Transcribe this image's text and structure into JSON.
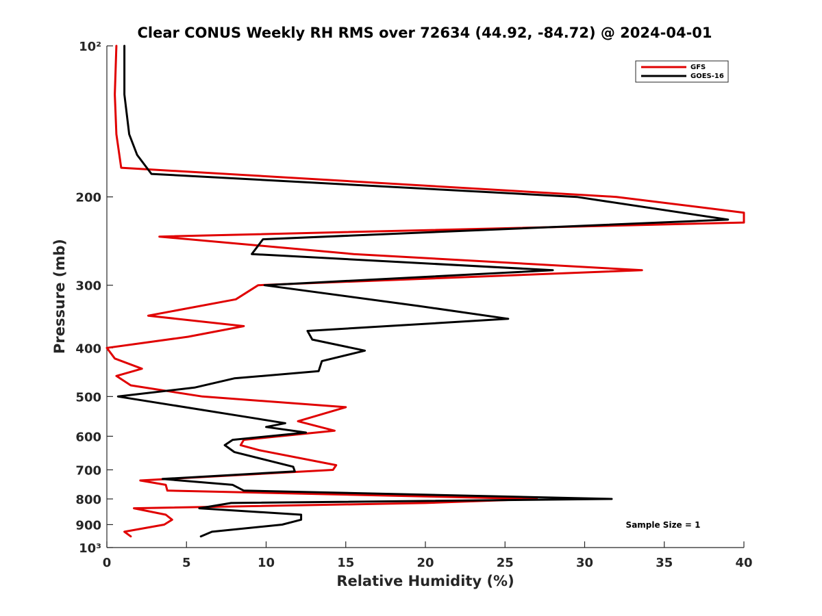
{
  "chart_data": {
    "type": "line",
    "orientation": "profile",
    "title": "Clear CONUS Weekly RH RMS over 72634 (44.92, -84.72) @ 2024-04-01",
    "xlabel": "Relative Humidity (%)",
    "ylabel": "Pressure (mb)",
    "xlim": [
      0,
      40
    ],
    "ylim": [
      100,
      1000
    ],
    "yscale": "log",
    "yreversed": true,
    "x_ticks": [
      0,
      5,
      10,
      15,
      20,
      25,
      30,
      35,
      40
    ],
    "x_tick_labels": [
      "0",
      "5",
      "10",
      "15",
      "20",
      "25",
      "30",
      "35",
      "40"
    ],
    "y_ticks": [
      100,
      200,
      300,
      400,
      500,
      600,
      700,
      800,
      900,
      1000
    ],
    "y_tick_labels": [
      "10²",
      "200",
      "300",
      "400",
      "500",
      "600",
      "700",
      "800",
      "900",
      "10³"
    ],
    "legend_position": "top-right",
    "annotation": "Sample Size = 1",
    "series": [
      {
        "name": "GFS",
        "color": "#e00000",
        "points": [
          [
            0.6,
            100
          ],
          [
            0.5,
            125
          ],
          [
            0.6,
            150
          ],
          [
            0.9,
            175
          ],
          [
            32,
            200
          ],
          [
            40,
            215
          ],
          [
            40,
            225
          ],
          [
            3.3,
            240
          ],
          [
            15.5,
            260
          ],
          [
            33.6,
            280
          ],
          [
            9.5,
            300
          ],
          [
            8.1,
            320
          ],
          [
            2.6,
            345
          ],
          [
            8.6,
            362
          ],
          [
            5.1,
            380
          ],
          [
            0,
            400
          ],
          [
            0.5,
            420
          ],
          [
            2.2,
            440
          ],
          [
            0.6,
            455
          ],
          [
            1.5,
            475
          ],
          [
            6,
            500
          ],
          [
            15,
            525
          ],
          [
            12,
            560
          ],
          [
            14.3,
            585
          ],
          [
            8.6,
            610
          ],
          [
            8.4,
            625
          ],
          [
            9.6,
            640
          ],
          [
            14.4,
            685
          ],
          [
            14.2,
            700
          ],
          [
            2.1,
            735
          ],
          [
            3.7,
            750
          ],
          [
            3.8,
            770
          ],
          [
            27,
            800
          ],
          [
            20,
            815
          ],
          [
            1.7,
            835
          ],
          [
            3.7,
            860
          ],
          [
            4.1,
            880
          ],
          [
            3.6,
            900
          ],
          [
            1.1,
            930
          ],
          [
            1.5,
            950
          ]
        ]
      },
      {
        "name": "GOES-16",
        "color": "#000000",
        "points": [
          [
            1.1,
            100
          ],
          [
            1.1,
            125
          ],
          [
            1.4,
            150
          ],
          [
            1.9,
            165
          ],
          [
            2.8,
            180
          ],
          [
            29.5,
            200
          ],
          [
            39,
            222
          ],
          [
            9.8,
            243
          ],
          [
            9.1,
            260
          ],
          [
            28,
            280
          ],
          [
            9.9,
            300
          ],
          [
            19.6,
            330
          ],
          [
            25.2,
            350
          ],
          [
            12.6,
            370
          ],
          [
            12.9,
            385
          ],
          [
            16.2,
            405
          ],
          [
            13.5,
            425
          ],
          [
            13.3,
            445
          ],
          [
            8,
            460
          ],
          [
            5.5,
            480
          ],
          [
            0.7,
            500
          ],
          [
            8.9,
            550
          ],
          [
            11.2,
            565
          ],
          [
            10.0,
            575
          ],
          [
            12.5,
            590
          ],
          [
            7.9,
            610
          ],
          [
            7.4,
            625
          ],
          [
            8.0,
            645
          ],
          [
            11.7,
            690
          ],
          [
            11.8,
            705
          ],
          [
            3.5,
            730
          ],
          [
            7.9,
            750
          ],
          [
            8.6,
            770
          ],
          [
            31.7,
            800
          ],
          [
            7.8,
            815
          ],
          [
            5.8,
            835
          ],
          [
            12.2,
            860
          ],
          [
            12.2,
            880
          ],
          [
            11.0,
            900
          ],
          [
            6.6,
            930
          ],
          [
            5.9,
            950
          ]
        ]
      }
    ]
  }
}
